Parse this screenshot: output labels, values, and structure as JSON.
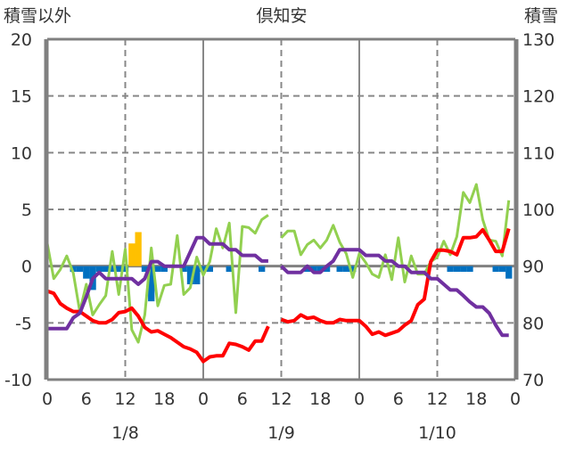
{
  "chart_data": {
    "type": "line",
    "title": "倶知安",
    "ylabel_left": "積雪以外",
    "ylabel_right": "積雪",
    "ylim_left": [
      -10,
      20
    ],
    "ylim_right": [
      70,
      130
    ],
    "yticks_left": [
      "20",
      "15",
      "10",
      "5",
      "0",
      "-5",
      "-10"
    ],
    "yticks_right": [
      "130",
      "120",
      "110",
      "100",
      "90",
      "80",
      "70"
    ],
    "xticks": [
      "0",
      "6",
      "12",
      "18",
      "0",
      "6",
      "12",
      "18",
      "0",
      "6",
      "12",
      "18",
      "0"
    ],
    "date_labels": [
      "1/8",
      "1/9",
      "1/10"
    ],
    "x_unit": "hours since 1/8 00:00",
    "grid": true,
    "series": [
      {
        "name": "green",
        "axis": "left",
        "color": "#92d050",
        "values": [
          2.0,
          -1.1,
          -0.3,
          0.9,
          -0.6,
          -4.0,
          -1.6,
          -4.3,
          -3.4,
          -2.6,
          1.3,
          -2.5,
          1.5,
          -5.6,
          -6.7,
          -4.3,
          1.6,
          -3.5,
          -1.7,
          -1.6,
          2.7,
          -2.5,
          -1.9,
          0.8,
          -0.8,
          0.4,
          3.3,
          1.6,
          3.8,
          -4.1,
          3.5,
          3.4,
          2.9,
          4.1,
          4.5,
          null,
          2.5,
          3.1,
          3.1,
          1.0,
          1.9,
          2.3,
          1.6,
          2.3,
          3.6,
          2.1,
          1.1,
          -1.0,
          1.1,
          0.3,
          -0.7,
          -1.0,
          1.0,
          -1.2,
          2.5,
          -1.4,
          0.9,
          -0.7,
          -0.7,
          0.4,
          0.8,
          2.2,
          1.0,
          2.6,
          6.5,
          5.6,
          7.2,
          4.1,
          2.3,
          2.2,
          0.9,
          5.8
        ]
      },
      {
        "name": "red",
        "axis": "left",
        "color": "#ff0000",
        "values": [
          -2.2,
          -2.4,
          -3.3,
          -3.7,
          -4.0,
          -4.0,
          -4.4,
          -4.8,
          -5.0,
          -5.0,
          -4.7,
          -4.1,
          -4.0,
          -3.7,
          -4.4,
          -5.4,
          -5.8,
          -5.7,
          -6.0,
          -6.3,
          -6.7,
          -7.1,
          -7.3,
          -7.6,
          -8.4,
          -8.0,
          -7.9,
          -7.9,
          -6.8,
          -6.9,
          -7.1,
          -7.4,
          -6.6,
          -6.6,
          -5.3,
          null,
          -4.7,
          -4.9,
          -4.8,
          -4.3,
          -4.6,
          -4.5,
          -4.8,
          -5.0,
          -5.0,
          -4.7,
          -4.8,
          -4.8,
          -4.8,
          -5.3,
          -6.0,
          -5.8,
          -6.1,
          -5.9,
          -5.7,
          -5.2,
          -4.8,
          -3.4,
          -2.9,
          0.4,
          1.4,
          1.4,
          1.3,
          1.0,
          2.5,
          2.5,
          2.6,
          3.2,
          2.3,
          1.3,
          1.3,
          3.3
        ]
      },
      {
        "name": "purple",
        "axis": "right",
        "color": "#7030a0",
        "values": [
          79,
          79,
          79,
          79,
          80.9,
          81.7,
          84.6,
          87.8,
          88.9,
          87.8,
          87.8,
          87.8,
          87.8,
          87.8,
          86.8,
          87.8,
          90.8,
          90.8,
          90,
          90,
          90,
          90,
          92.5,
          95,
          95,
          93.9,
          93.9,
          93.9,
          92.9,
          92.9,
          91.9,
          91.9,
          91.9,
          90.9,
          90.9,
          null,
          90,
          88.9,
          88.9,
          88.9,
          90,
          88.9,
          88.9,
          90,
          90.9,
          92.9,
          92.9,
          92.9,
          92.9,
          91.9,
          91.9,
          91.9,
          90.9,
          90.9,
          90,
          90,
          88.9,
          88.9,
          88.9,
          87.8,
          87.8,
          86.8,
          85.8,
          85.8,
          84.8,
          83.7,
          82.8,
          82.8,
          81.7,
          79.6,
          77.8,
          77.8
        ]
      }
    ],
    "bars": [
      {
        "name": "orange",
        "axis": "left",
        "color": "#ffc000",
        "values": {
          "13": 2.0,
          "14": 3.0
        }
      },
      {
        "name": "blue",
        "axis": "left",
        "color": "#0070c0",
        "values": {
          "4": -0.5,
          "5": -0.5,
          "6": -1.1,
          "7": -2.1,
          "8": -0.5,
          "9": -0.5,
          "10": -0.5,
          "11": -0.5,
          "12": -0.5,
          "15": -0.5,
          "16": -3.1,
          "17": -0.5,
          "18": -0.5,
          "21": -0.5,
          "22": -1.6,
          "23": -1.6,
          "24": -0.5,
          "25": -0.5,
          "28": -0.5,
          "33": -0.5,
          "40": -0.5,
          "41": -0.5,
          "42": -0.5,
          "43": -0.5,
          "45": -0.5,
          "46": -0.5,
          "47": -0.5,
          "62": -0.5,
          "63": -0.5,
          "64": -0.5,
          "65": -0.5,
          "69": -0.5,
          "70": -0.5,
          "71": -1.1
        }
      }
    ]
  }
}
